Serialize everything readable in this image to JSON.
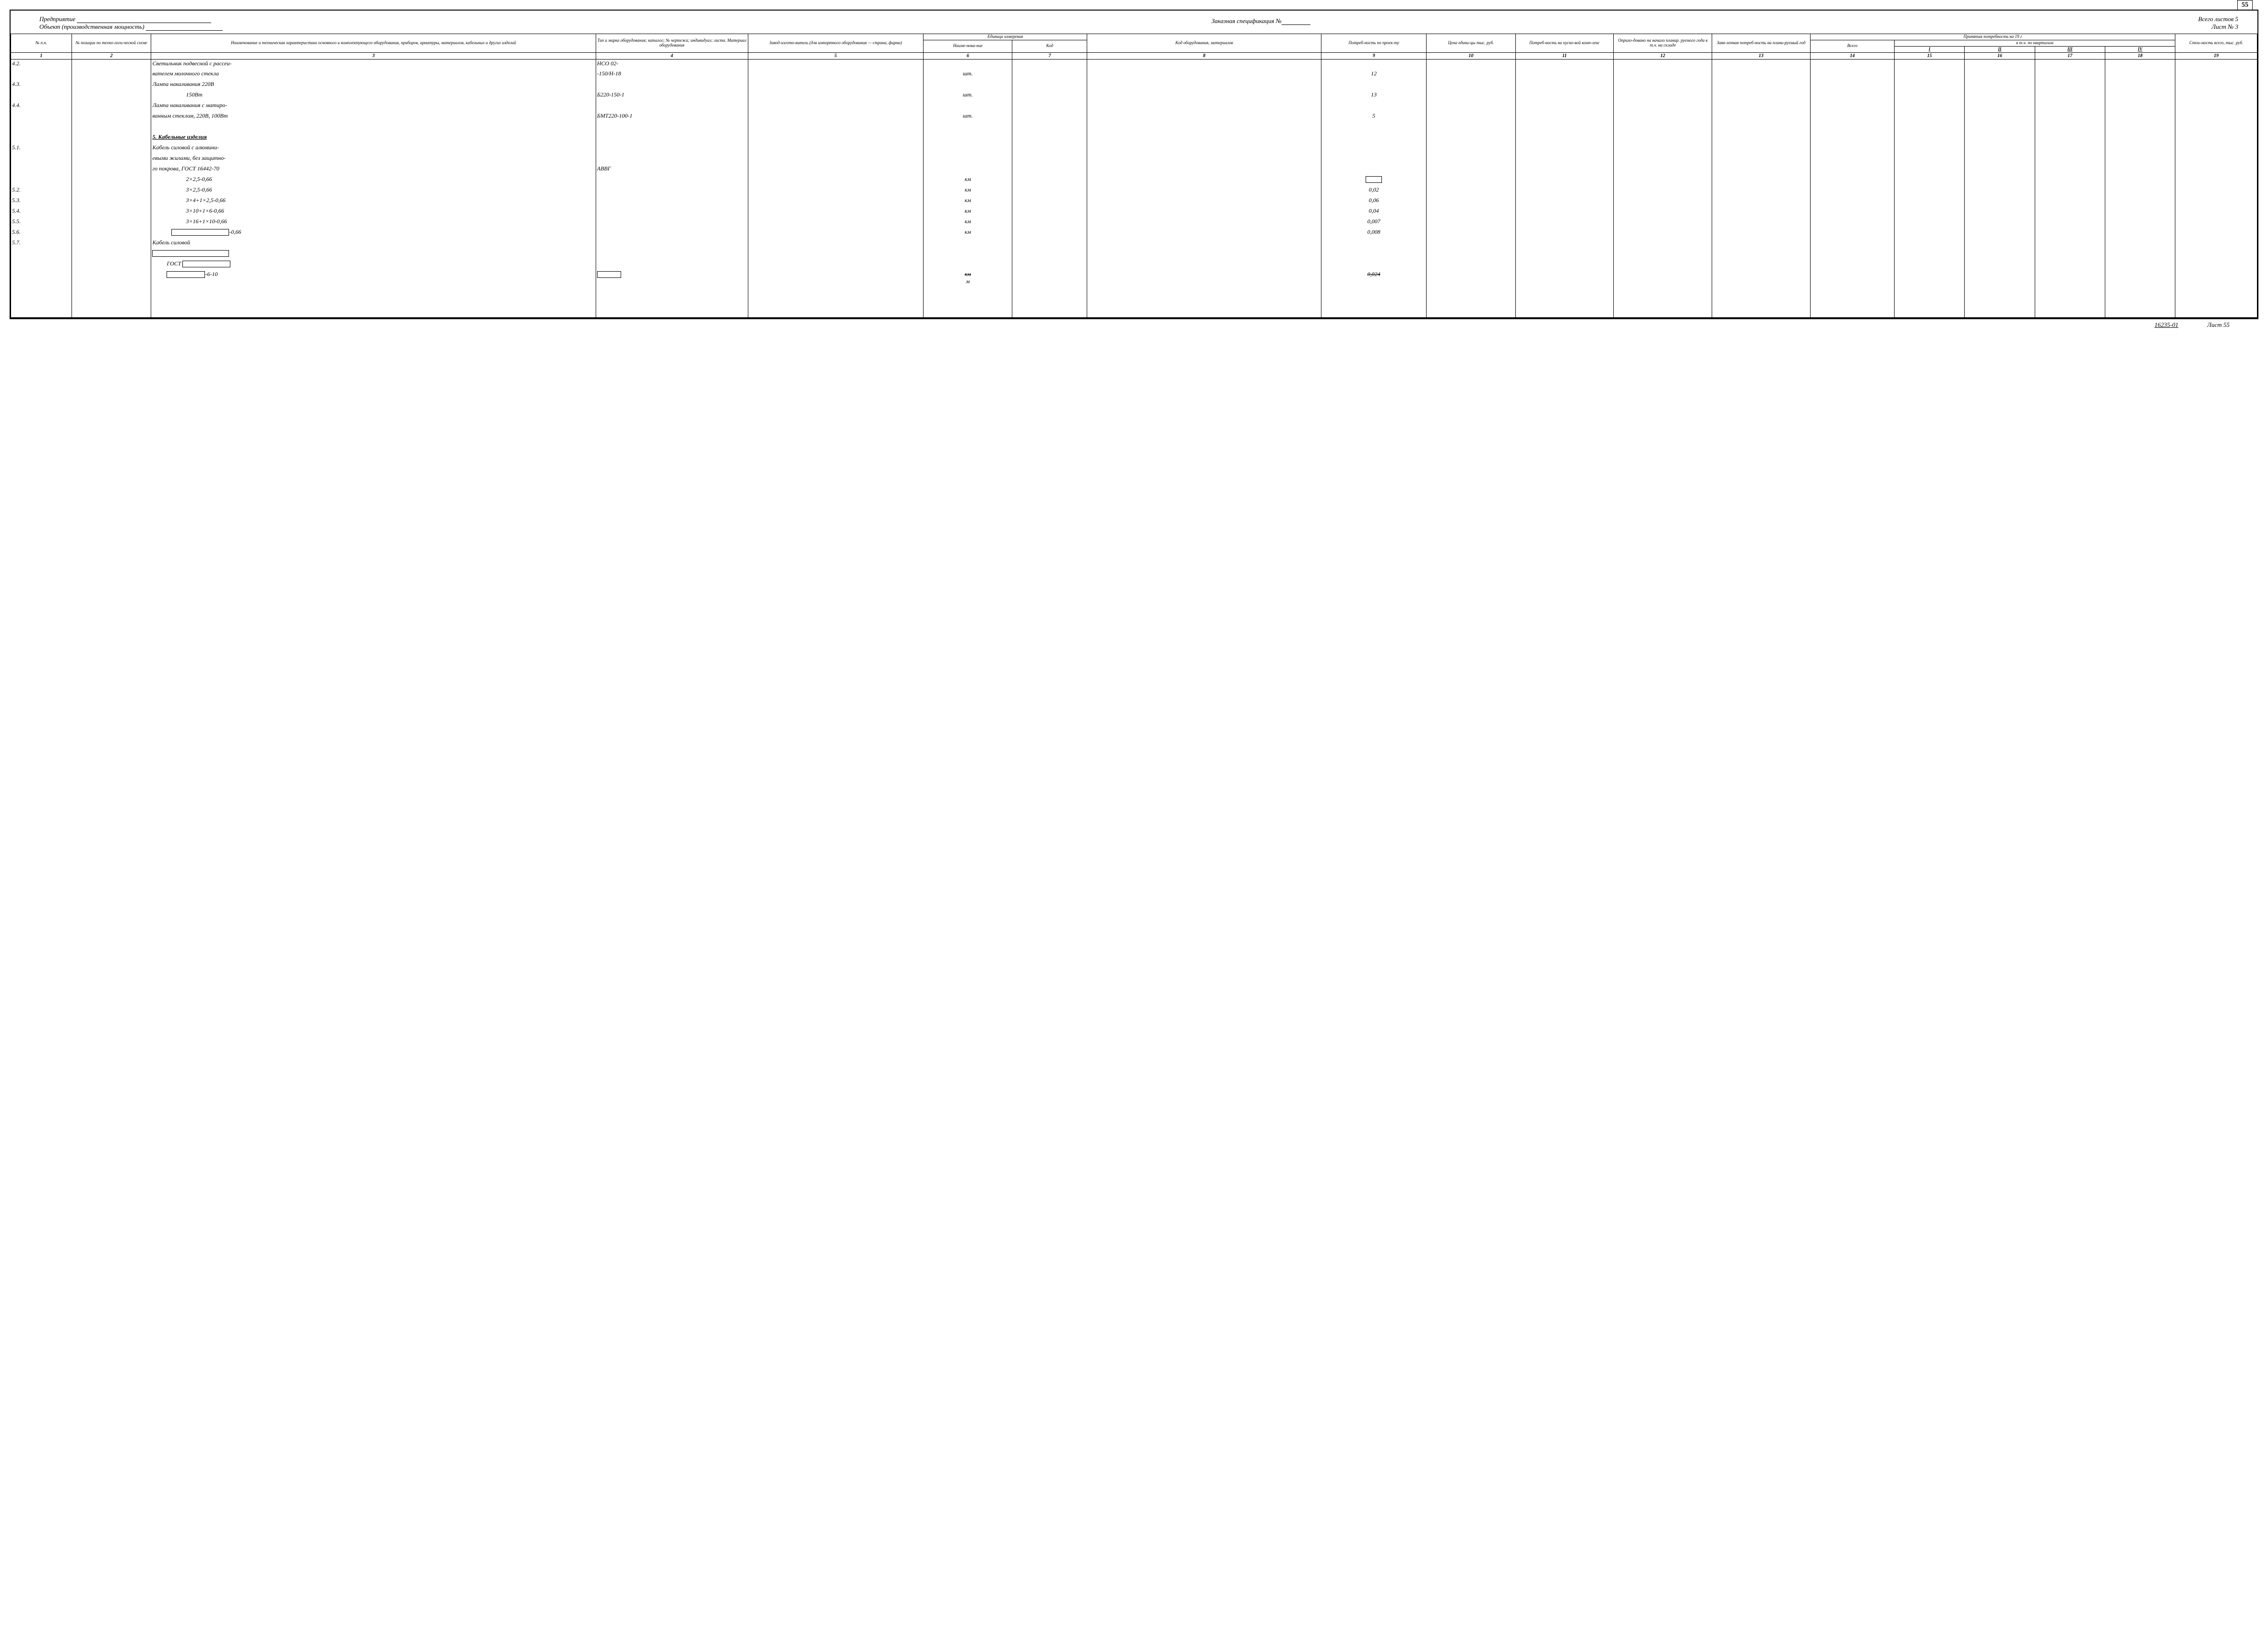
{
  "page_corner": "55",
  "header": {
    "company_label": "Предприятие",
    "object_label": "Объект (производственная мощность)",
    "title": "Заказная спецификация №",
    "total_sheets_label": "Всего листов",
    "total_sheets": "5",
    "sheet_label": "Лист №",
    "sheet_num": "3"
  },
  "col_widths_pct": [
    2.6,
    3.4,
    19,
    6.5,
    7.5,
    3.8,
    3.2,
    10,
    4.5,
    3.8,
    4.2,
    4.2,
    4.2,
    3.6,
    3.0,
    3.0,
    3.0,
    3.0,
    3.5
  ],
  "columns": {
    "c1": "№ п.п.",
    "c2": "№ позиции по техно-логи-ческой схеме",
    "c3": "Наименование и техническая характеристика основного и комплектующего оборудования, приборов, арматуры, материалов, кабельных и других изделий",
    "c4": "Тип и марка оборудования; каталог; № чертежа; индивидуал; листа. Материал оборудования",
    "c5": "Завод-изгото-витель (для импортного оборудования — страна, фирма)",
    "c6_group": "Единица измерения",
    "c6": "Наиме-нова-ние",
    "c7": "Код",
    "c8": "Код оборудования, материалов",
    "c9": "Потреб-ность по проек-ту",
    "c10": "Цена едини-цы тыс. руб.",
    "c11": "Потреб-ность на пуско-вой комп-лекс",
    "c12": "Оприхо-довано на начало планир. руемого года в т.ч. на складе",
    "c13": "Заяв-ленная потреб-ность на плани-руемый год",
    "c14_group": "Принятая потребность на 19   г",
    "c14": "Всего",
    "c15_18": "в т.ч. по кварталам",
    "q1": "I",
    "q2": "II",
    "q3": "III",
    "q4": "IV",
    "c19": "Стои-мость всего, тыс. руб."
  },
  "colnums": [
    "1",
    "2",
    "3",
    "4",
    "5",
    "6",
    "7",
    "8",
    "9",
    "10",
    "11",
    "12",
    "13",
    "14",
    "15",
    "16",
    "17",
    "18",
    "19"
  ],
  "rows": [
    {
      "n": "4.2.",
      "desc": "Светильник подвесной с рассеи-",
      "mark": "НСО 02-"
    },
    {
      "desc": "вателем молочного стекла",
      "mark": "-150/Н-18",
      "unit": "шт.",
      "need": "12"
    },
    {
      "n": "4.3.",
      "desc": "Лампа накаливания 220В"
    },
    {
      "desc_center": "150Вт",
      "mark": "Б220-150-1",
      "unit": "шт.",
      "need": "13"
    },
    {
      "n": "4.4.",
      "desc": "Лампа накаливания с матиро-"
    },
    {
      "desc": "ванным стеклом, 220В, 100Вт",
      "mark": "БМТ220-100-1",
      "unit": "шт.",
      "need": "5"
    },
    {
      "blank": true
    },
    {
      "desc_section": "5. Кабельные изделия"
    },
    {
      "n": "5.1.",
      "desc": "Кабель силовой с алюмини-"
    },
    {
      "desc": "евыми жилами, без защитно-"
    },
    {
      "desc": "го покрова, ГОСТ 16442-70",
      "mark": "АВВГ"
    },
    {
      "desc_center": "2×2,5-0,66",
      "unit": "км",
      "need_box": true
    },
    {
      "n": "5.2.",
      "desc_center": "3×2,5-0,66",
      "unit": "км",
      "need": "0,02"
    },
    {
      "n": "5.3.",
      "desc_center": "3×4+1×2,5-0,66",
      "unit": "км",
      "need": "0,06"
    },
    {
      "n": "5.4.",
      "desc_center": "3×10+1×6-0,66",
      "unit": "км",
      "need": "0,04"
    },
    {
      "n": "5.5.",
      "desc_center": "3×16+1×10-0,66",
      "unit": "км",
      "need": "0,007"
    },
    {
      "n": "5.6.",
      "desc_redact_suffix": "-0,66",
      "unit": "км",
      "need": "0,008"
    },
    {
      "n": "5.7.",
      "desc": "Кабель силовой"
    },
    {
      "desc_redact_full": true
    },
    {
      "desc_gost_redact": "ГОСТ"
    },
    {
      "desc_redact_suffix2": "-6-10",
      "mark_redact": true,
      "unit_over": "км",
      "unit": "м",
      "need_strike": "0,024"
    },
    {
      "blank": true
    },
    {
      "blank": true
    },
    {
      "blank": true
    }
  ],
  "footer": {
    "docnum": "16235-01",
    "sheet": "Лист 55"
  }
}
